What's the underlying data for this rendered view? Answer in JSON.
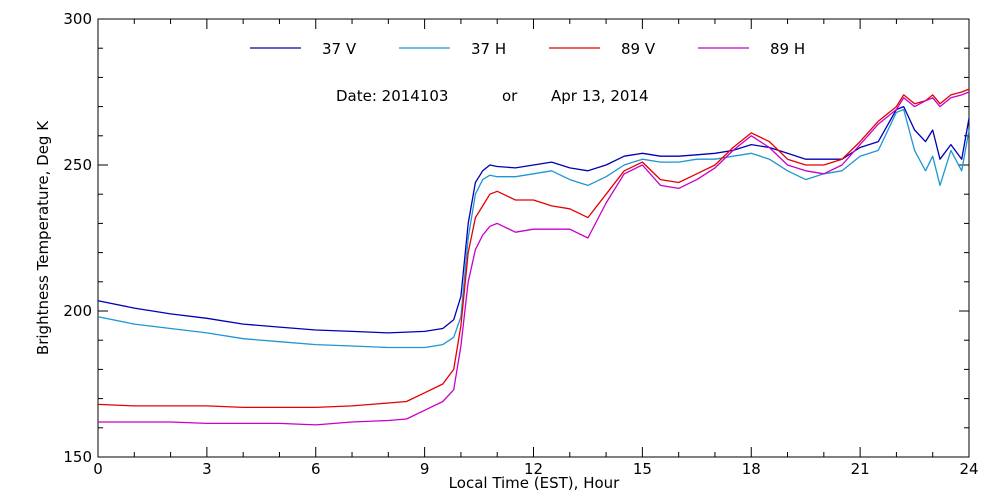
{
  "chart_data": {
    "type": "line",
    "title": "",
    "annotation": {
      "date_label": "Date: 2014103",
      "or_label": "or",
      "date_text": "Apr 13, 2014"
    },
    "xlabel": "Local Time (EST), Hour",
    "ylabel": "Brightness Temperature, Deg K",
    "xlim": [
      0,
      24
    ],
    "ylim": [
      150,
      300
    ],
    "xticks": [
      0,
      3,
      6,
      9,
      12,
      15,
      18,
      21,
      24
    ],
    "xtick_labels": [
      "0",
      "3",
      "6",
      "9",
      "12",
      "15",
      "18",
      "21",
      "24"
    ],
    "yticks": [
      150,
      200,
      250,
      300
    ],
    "ytick_labels": [
      "150",
      "200",
      "250",
      "300"
    ],
    "grid": false,
    "legend_position": "top",
    "series": [
      {
        "name": "37 V",
        "color": "#0000b4",
        "x": [
          0,
          1,
          2,
          3,
          4,
          5,
          6,
          7,
          8,
          9,
          9.5,
          9.8,
          10,
          10.2,
          10.4,
          10.6,
          10.8,
          11,
          11.5,
          12,
          12.5,
          13,
          13.5,
          14,
          14.5,
          15,
          15.5,
          16,
          16.5,
          17,
          17.5,
          18,
          18.5,
          19,
          19.5,
          20,
          20.5,
          21,
          21.5,
          22,
          22.2,
          22.5,
          22.8,
          23,
          23.2,
          23.5,
          23.8,
          24
        ],
        "y": [
          203.5,
          201,
          199,
          197.5,
          195.5,
          194.5,
          193.5,
          193,
          192.5,
          193,
          194,
          197,
          205,
          230,
          244,
          248,
          250,
          249.5,
          249,
          250,
          251,
          249,
          248,
          250,
          253,
          254,
          253,
          253,
          253.5,
          254,
          255,
          257,
          256,
          254,
          252,
          252,
          252,
          256,
          258,
          269,
          270,
          262,
          258,
          262,
          252,
          257,
          252,
          266
        ]
      },
      {
        "name": "37 H",
        "color": "#1e96d2",
        "x": [
          0,
          1,
          2,
          3,
          4,
          5,
          6,
          7,
          8,
          9,
          9.5,
          9.8,
          10,
          10.2,
          10.4,
          10.6,
          10.8,
          11,
          11.5,
          12,
          12.5,
          13,
          13.5,
          14,
          14.5,
          15,
          15.5,
          16,
          16.5,
          17,
          17.5,
          18,
          18.5,
          19,
          19.5,
          20,
          20.5,
          21,
          21.5,
          22,
          22.2,
          22.5,
          22.8,
          23,
          23.2,
          23.5,
          23.8,
          24
        ],
        "y": [
          198,
          195.5,
          194,
          192.5,
          190.5,
          189.5,
          188.5,
          188,
          187.5,
          187.5,
          188.5,
          191,
          198,
          225,
          240,
          245,
          246.5,
          246,
          246,
          247,
          248,
          245,
          243,
          246,
          250,
          252,
          251,
          251,
          252,
          252,
          253,
          254,
          252,
          248,
          245,
          247,
          248,
          253,
          255,
          268,
          269,
          255,
          248,
          253,
          243,
          255,
          248,
          262
        ]
      },
      {
        "name": "89 V",
        "color": "#e60000",
        "x": [
          0,
          1,
          2,
          3,
          4,
          5,
          6,
          7,
          8,
          8.5,
          9,
          9.5,
          9.8,
          10,
          10.2,
          10.4,
          10.6,
          10.8,
          11,
          11.5,
          12,
          12.5,
          13,
          13.5,
          14,
          14.5,
          15,
          15.5,
          16,
          16.5,
          17,
          17.5,
          18,
          18.5,
          19,
          19.5,
          20,
          20.5,
          21,
          21.5,
          22,
          22.2,
          22.5,
          22.8,
          23,
          23.2,
          23.5,
          23.8,
          24
        ],
        "y": [
          168,
          167.5,
          167.5,
          167.5,
          167,
          167,
          167,
          167.5,
          168.5,
          169,
          172,
          175,
          180,
          195,
          220,
          232,
          236,
          240,
          241,
          238,
          238,
          236,
          235,
          232,
          240,
          248,
          251,
          245,
          244,
          247,
          250,
          256,
          261,
          258,
          252,
          250,
          250,
          252,
          258,
          265,
          270,
          274,
          271,
          272,
          274,
          271,
          274,
          275,
          276
        ]
      },
      {
        "name": "89 H",
        "color": "#c800c8",
        "x": [
          0,
          1,
          2,
          3,
          4,
          5,
          6,
          7,
          8,
          8.5,
          9,
          9.5,
          9.8,
          10,
          10.2,
          10.4,
          10.6,
          10.8,
          11,
          11.5,
          12,
          12.5,
          13,
          13.5,
          14,
          14.5,
          15,
          15.5,
          16,
          16.5,
          17,
          17.5,
          18,
          18.5,
          19,
          19.5,
          20,
          20.5,
          21,
          21.5,
          22,
          22.2,
          22.5,
          22.8,
          23,
          23.2,
          23.5,
          23.8,
          24
        ],
        "y": [
          162,
          162,
          162,
          161.5,
          161.5,
          161.5,
          161,
          162,
          162.5,
          163,
          166,
          169,
          173,
          188,
          210,
          221,
          226,
          229,
          230,
          227,
          228,
          228,
          228,
          225,
          237,
          247,
          250,
          243,
          242,
          245,
          249,
          255,
          260,
          256,
          250,
          248,
          247,
          250,
          257,
          264,
          269,
          273,
          270,
          272,
          273,
          270,
          273,
          274,
          275
        ]
      }
    ]
  }
}
